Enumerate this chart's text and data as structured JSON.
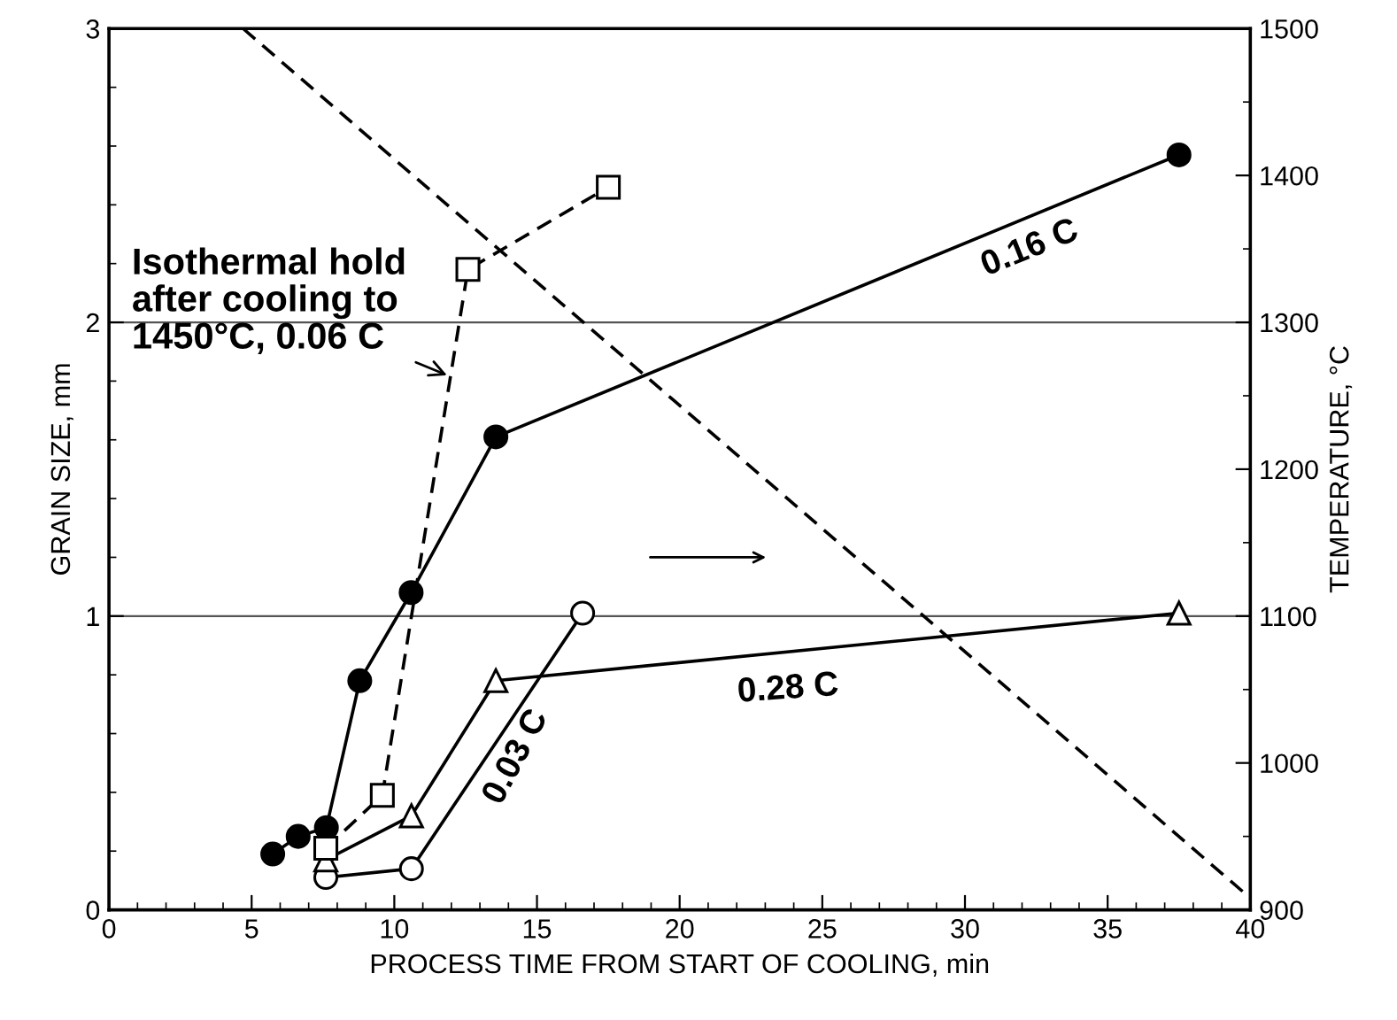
{
  "chart_data": {
    "type": "line",
    "xlabel": "PROCESS TIME FROM START OF COOLING, min",
    "ylabel": "GRAIN SIZE, mm",
    "y2label": "TEMPERATURE, °C",
    "xlim": [
      0,
      40
    ],
    "xticks": [
      0,
      5,
      10,
      15,
      20,
      25,
      30,
      35,
      40
    ],
    "ylim": [
      0,
      3
    ],
    "yticks": [
      0,
      1,
      2,
      3
    ],
    "y2lim": [
      900,
      1500
    ],
    "y2ticks": [
      900,
      1000,
      1100,
      1200,
      1300,
      1400,
      1500
    ],
    "grid": "y",
    "legend": false,
    "series": [
      {
        "color": "#000000",
        "marker": "circle",
        "line_style": "solid",
        "x": [
          5.74,
          6.63,
          7.62,
          8.79,
          10.59,
          13.56,
          37.5
        ],
        "values": [
          0.19,
          0.25,
          0.28,
          0.78,
          1.08,
          1.61,
          2.57
        ]
      },
      {
        "color": "#000000",
        "marker": "circle",
        "line_style": "solid",
        "x": [
          7.6,
          10.6,
          16.6
        ],
        "values": [
          0.11,
          0.14,
          1.01
        ]
      },
      {
        "color": "#000000",
        "marker": "triangle",
        "line_style": "solid",
        "x": [
          7.6,
          10.6,
          13.56,
          37.5
        ],
        "values": [
          0.17,
          0.32,
          0.78,
          1.01
        ]
      },
      {
        "color": "#000000",
        "marker": "square",
        "line_style": "dashed",
        "x": [
          7.6,
          9.58,
          12.58,
          17.5
        ],
        "values": [
          0.21,
          0.39,
          2.18,
          2.46
        ]
      },
      {
        "color": "#000000",
        "marker": "none",
        "line_style": "dashed",
        "axis": "y2",
        "x": [
          4.7,
          40
        ],
        "values": [
          1500,
          908
        ]
      }
    ],
    "annotations": [
      "0.16 C",
      "0.28 C",
      "0.03 C",
      {
        "text": "Isothermal hold\nafter cooling to\n1450°C, 0.06 C",
        "x": 11.85,
        "y": 1.82
      }
    ]
  }
}
